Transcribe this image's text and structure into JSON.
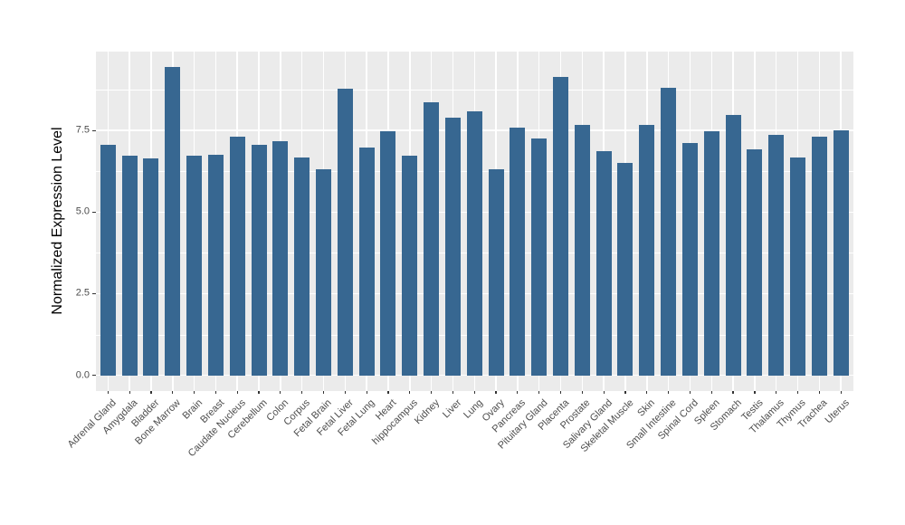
{
  "chart_data": {
    "type": "bar",
    "title": "",
    "xlabel": "",
    "ylabel": "Normalized Expression Level",
    "categories": [
      "Adrenal Gland",
      "Amygdala",
      "Bladder",
      "Bone Marrow",
      "Brain",
      "Breast",
      "Caudate Nucleus",
      "Cerebellum",
      "Colon",
      "Corpus",
      "Fetal Brain",
      "Fetal Liver",
      "Fetal Lung",
      "Heart",
      "hippocampus",
      "Kidney",
      "Liver",
      "Lung",
      "Ovary",
      "Pancreas",
      "Pituitary Gland",
      "Placenta",
      "Prostate",
      "Salivary Gland",
      "Skeletal Muscle",
      "Skin",
      "Small Intestine",
      "Spinal Cord",
      "Spleen",
      "Stomach",
      "Testis",
      "Thalamus",
      "Thymus",
      "Trachea",
      "Uterus"
    ],
    "values": [
      7.07,
      6.72,
      6.64,
      9.44,
      6.72,
      6.76,
      7.32,
      7.06,
      7.17,
      6.68,
      6.3,
      8.79,
      6.98,
      7.49,
      6.72,
      8.36,
      7.9,
      8.08,
      6.3,
      7.58,
      7.26,
      9.14,
      7.66,
      6.87,
      6.52,
      7.68,
      8.81,
      7.13,
      7.47,
      7.98,
      6.92,
      7.37,
      6.67,
      7.3,
      7.52
    ],
    "yticks": [
      0.0,
      2.5,
      5.0,
      7.5
    ],
    "ytick_labels": [
      "0.0",
      "2.5",
      "5.0",
      "7.5"
    ],
    "y_minor_ticks": [
      1.25,
      3.75,
      6.25,
      8.75
    ],
    "ylim": [
      -0.47,
      9.92
    ],
    "x_label_angle": 45,
    "grid": "major+minor horizontal, major vertical",
    "legend": "none",
    "colors": {
      "bar_fill": "#376791",
      "panel_bg": "#EBEBEB",
      "grid": "#FFFFFF",
      "tick_mark": "#333333",
      "tick_label": "#4D4D4D",
      "axis_title": "#000000",
      "page_bg": "#FFFFFF"
    }
  }
}
